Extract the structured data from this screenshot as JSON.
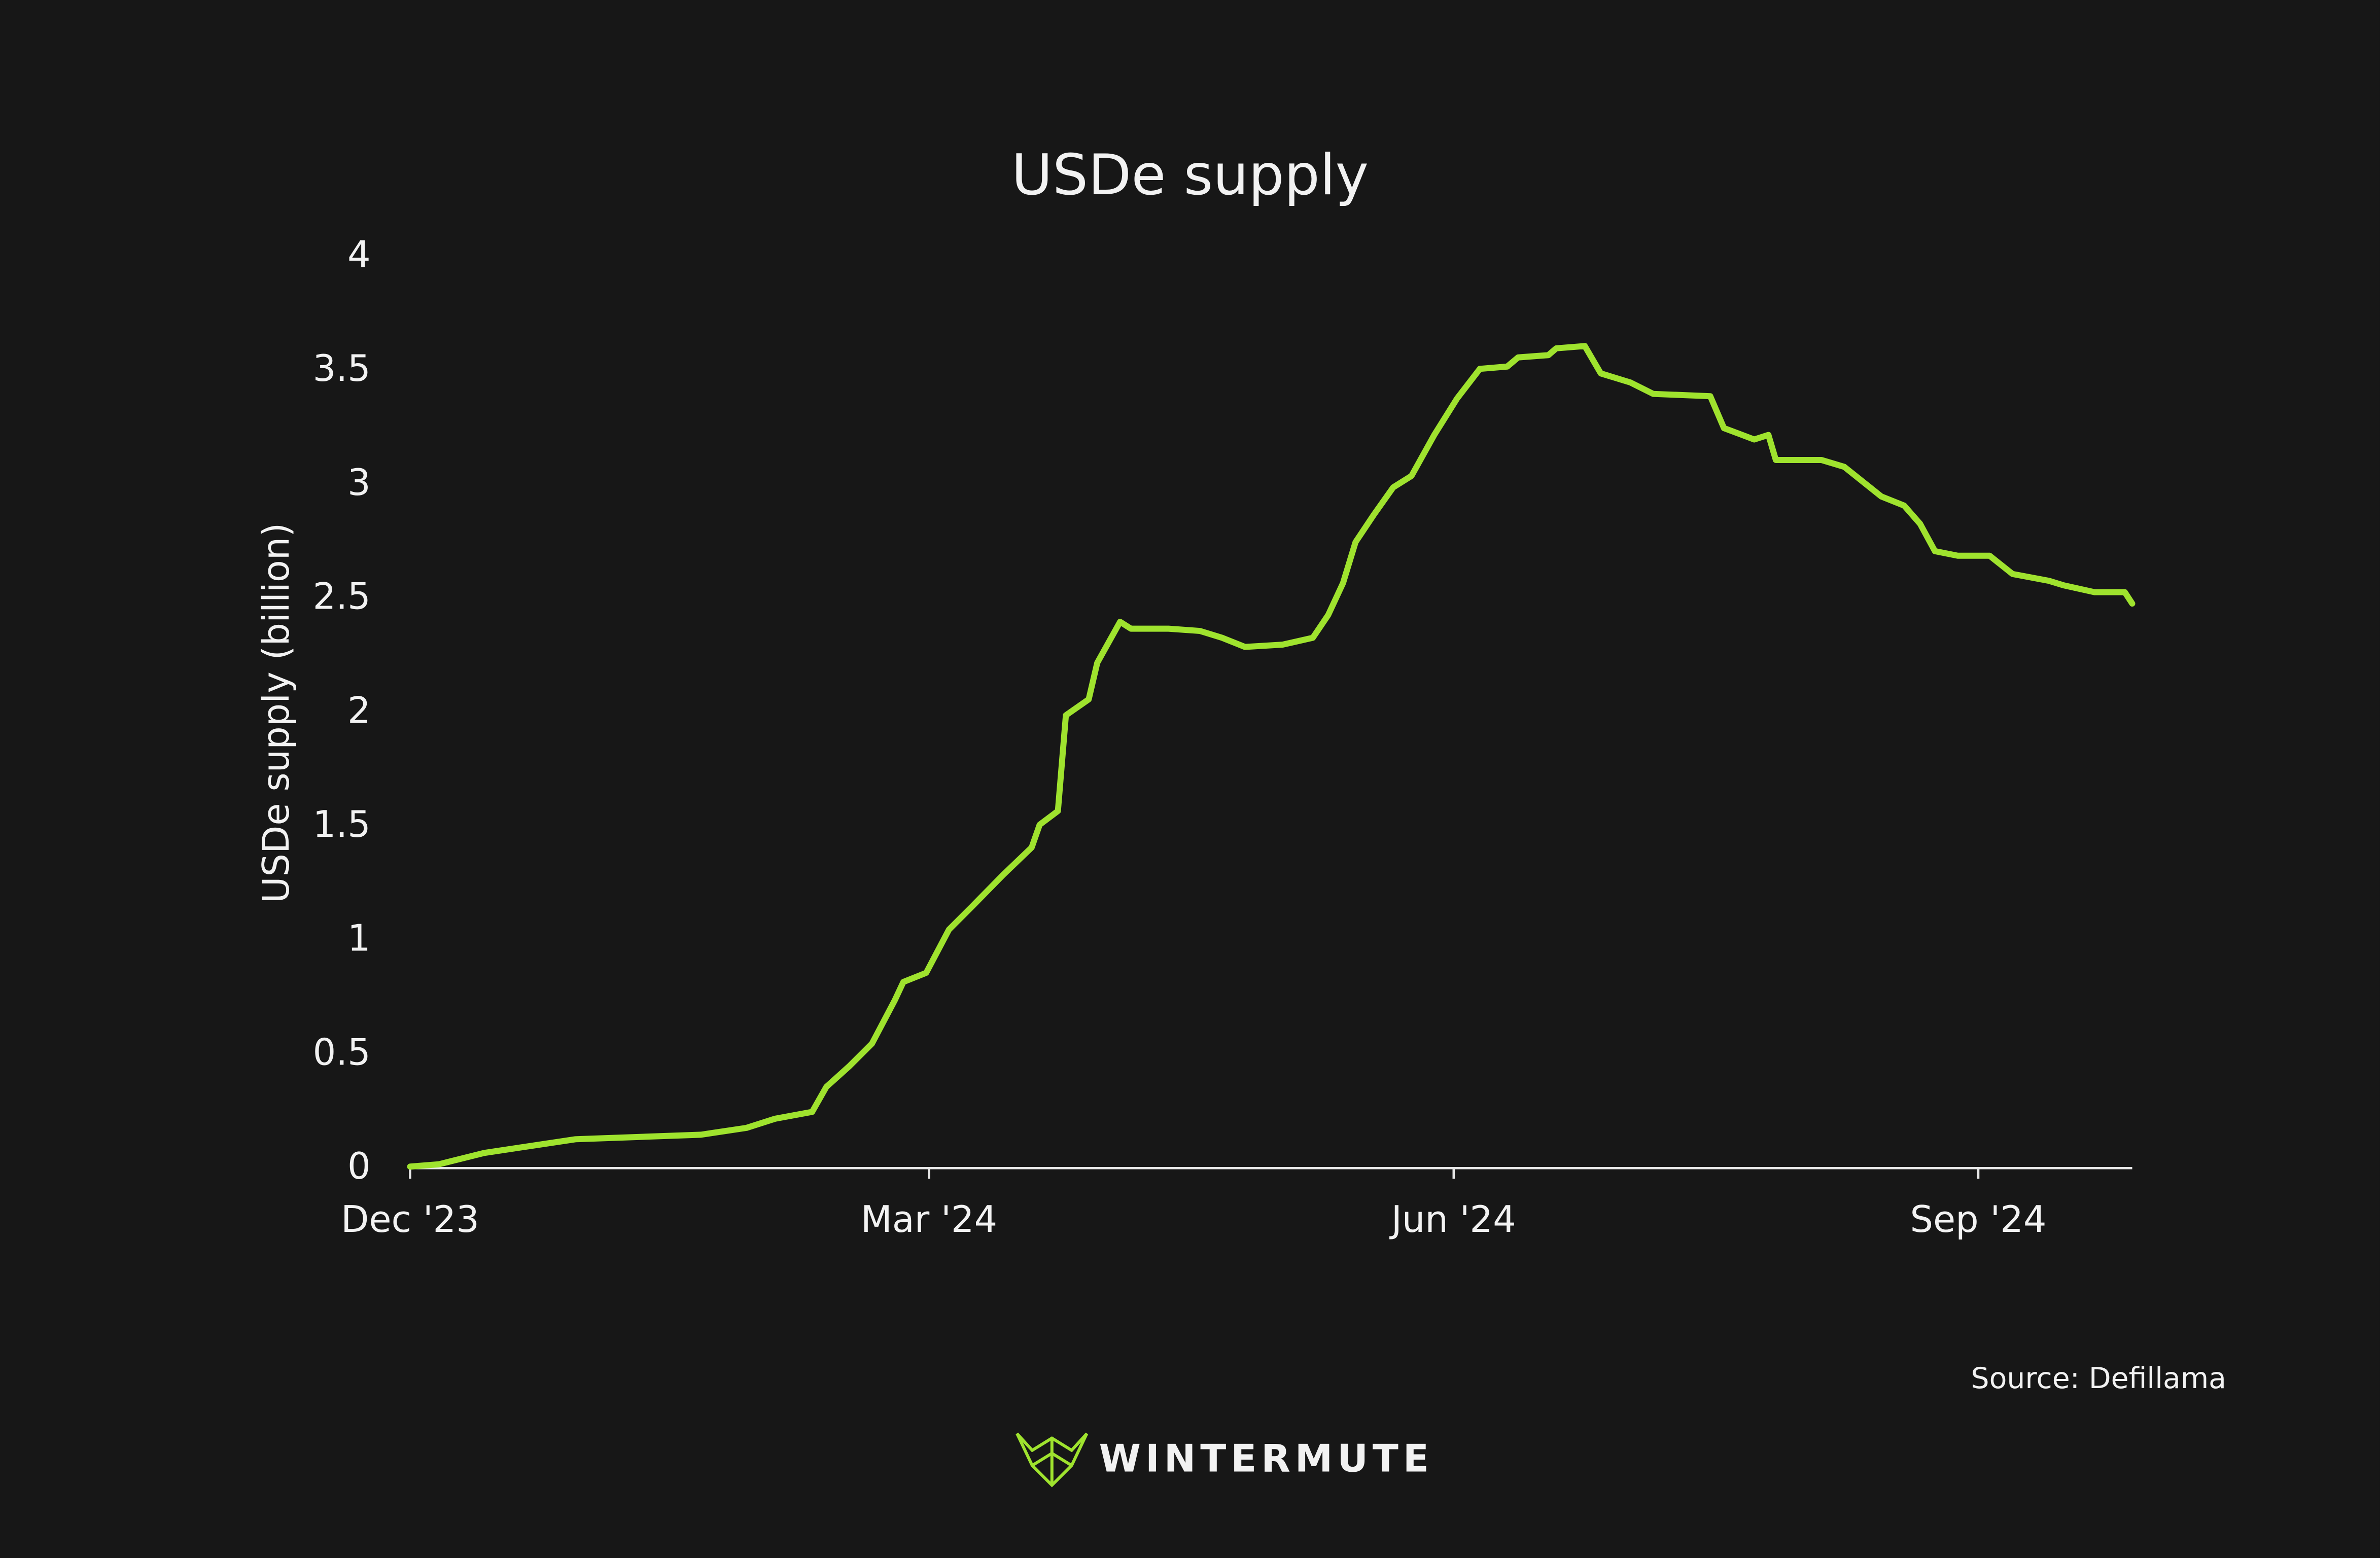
{
  "chart_data": {
    "type": "line",
    "title": "USDe supply",
    "ylabel": "USDe supply (billion)",
    "source": "Source: Defillama",
    "brand": "WINTERMUTE",
    "color": "#9fe32e",
    "x": [
      0,
      5,
      13,
      21,
      29,
      40,
      51,
      59,
      64,
      70.5,
      73,
      77,
      81,
      85,
      86.5,
      90.5,
      94.5,
      98.5,
      104,
      109,
      110.4,
      113.6,
      115,
      119,
      120.5,
      124.5,
      126.4,
      133,
      138.5,
      142.4,
      146.4,
      153,
      158.3,
      161,
      163.6,
      165.8,
      169,
      172.4,
      175.6,
      179.6,
      183.6,
      187.6,
      192.4,
      194.3,
      199.6,
      201,
      206,
      208.8,
      214,
      218,
      228,
      230.4,
      235.7,
      238.2,
      239.5,
      247.5,
      251.5,
      255.5,
      258,
      262,
      264.8,
      267.4,
      271.4,
      277,
      281,
      287.4,
      290,
      295.4,
      300.7,
      302
    ],
    "values": [
      0,
      0.01,
      0.06,
      0.09,
      0.12,
      0.13,
      0.14,
      0.17,
      0.21,
      0.24,
      0.35,
      0.44,
      0.54,
      0.73,
      0.81,
      0.85,
      1.04,
      1.14,
      1.28,
      1.4,
      1.5,
      1.56,
      1.98,
      2.05,
      2.21,
      2.39,
      2.36,
      2.36,
      2.35,
      2.32,
      2.28,
      2.29,
      2.32,
      2.42,
      2.56,
      2.74,
      2.86,
      2.98,
      3.03,
      3.21,
      3.37,
      3.5,
      3.51,
      3.55,
      3.56,
      3.59,
      3.6,
      3.48,
      3.44,
      3.39,
      3.38,
      3.24,
      3.19,
      3.21,
      3.1,
      3.1,
      3.07,
      2.99,
      2.94,
      2.9,
      2.82,
      2.7,
      2.68,
      2.68,
      2.6,
      2.57,
      2.55,
      2.52,
      2.52,
      2.47
    ],
    "xlim": [
      0,
      302
    ],
    "xticks": [
      {
        "value": 0,
        "label": "Dec '23"
      },
      {
        "value": 91,
        "label": "Mar '24"
      },
      {
        "value": 183,
        "label": "Jun '24"
      },
      {
        "value": 275,
        "label": "Sep '24"
      }
    ],
    "ylim": [
      0,
      4
    ],
    "yticks": [
      0,
      0.5,
      1,
      1.5,
      2,
      2.5,
      3,
      3.5,
      4
    ],
    "grid": false
  }
}
